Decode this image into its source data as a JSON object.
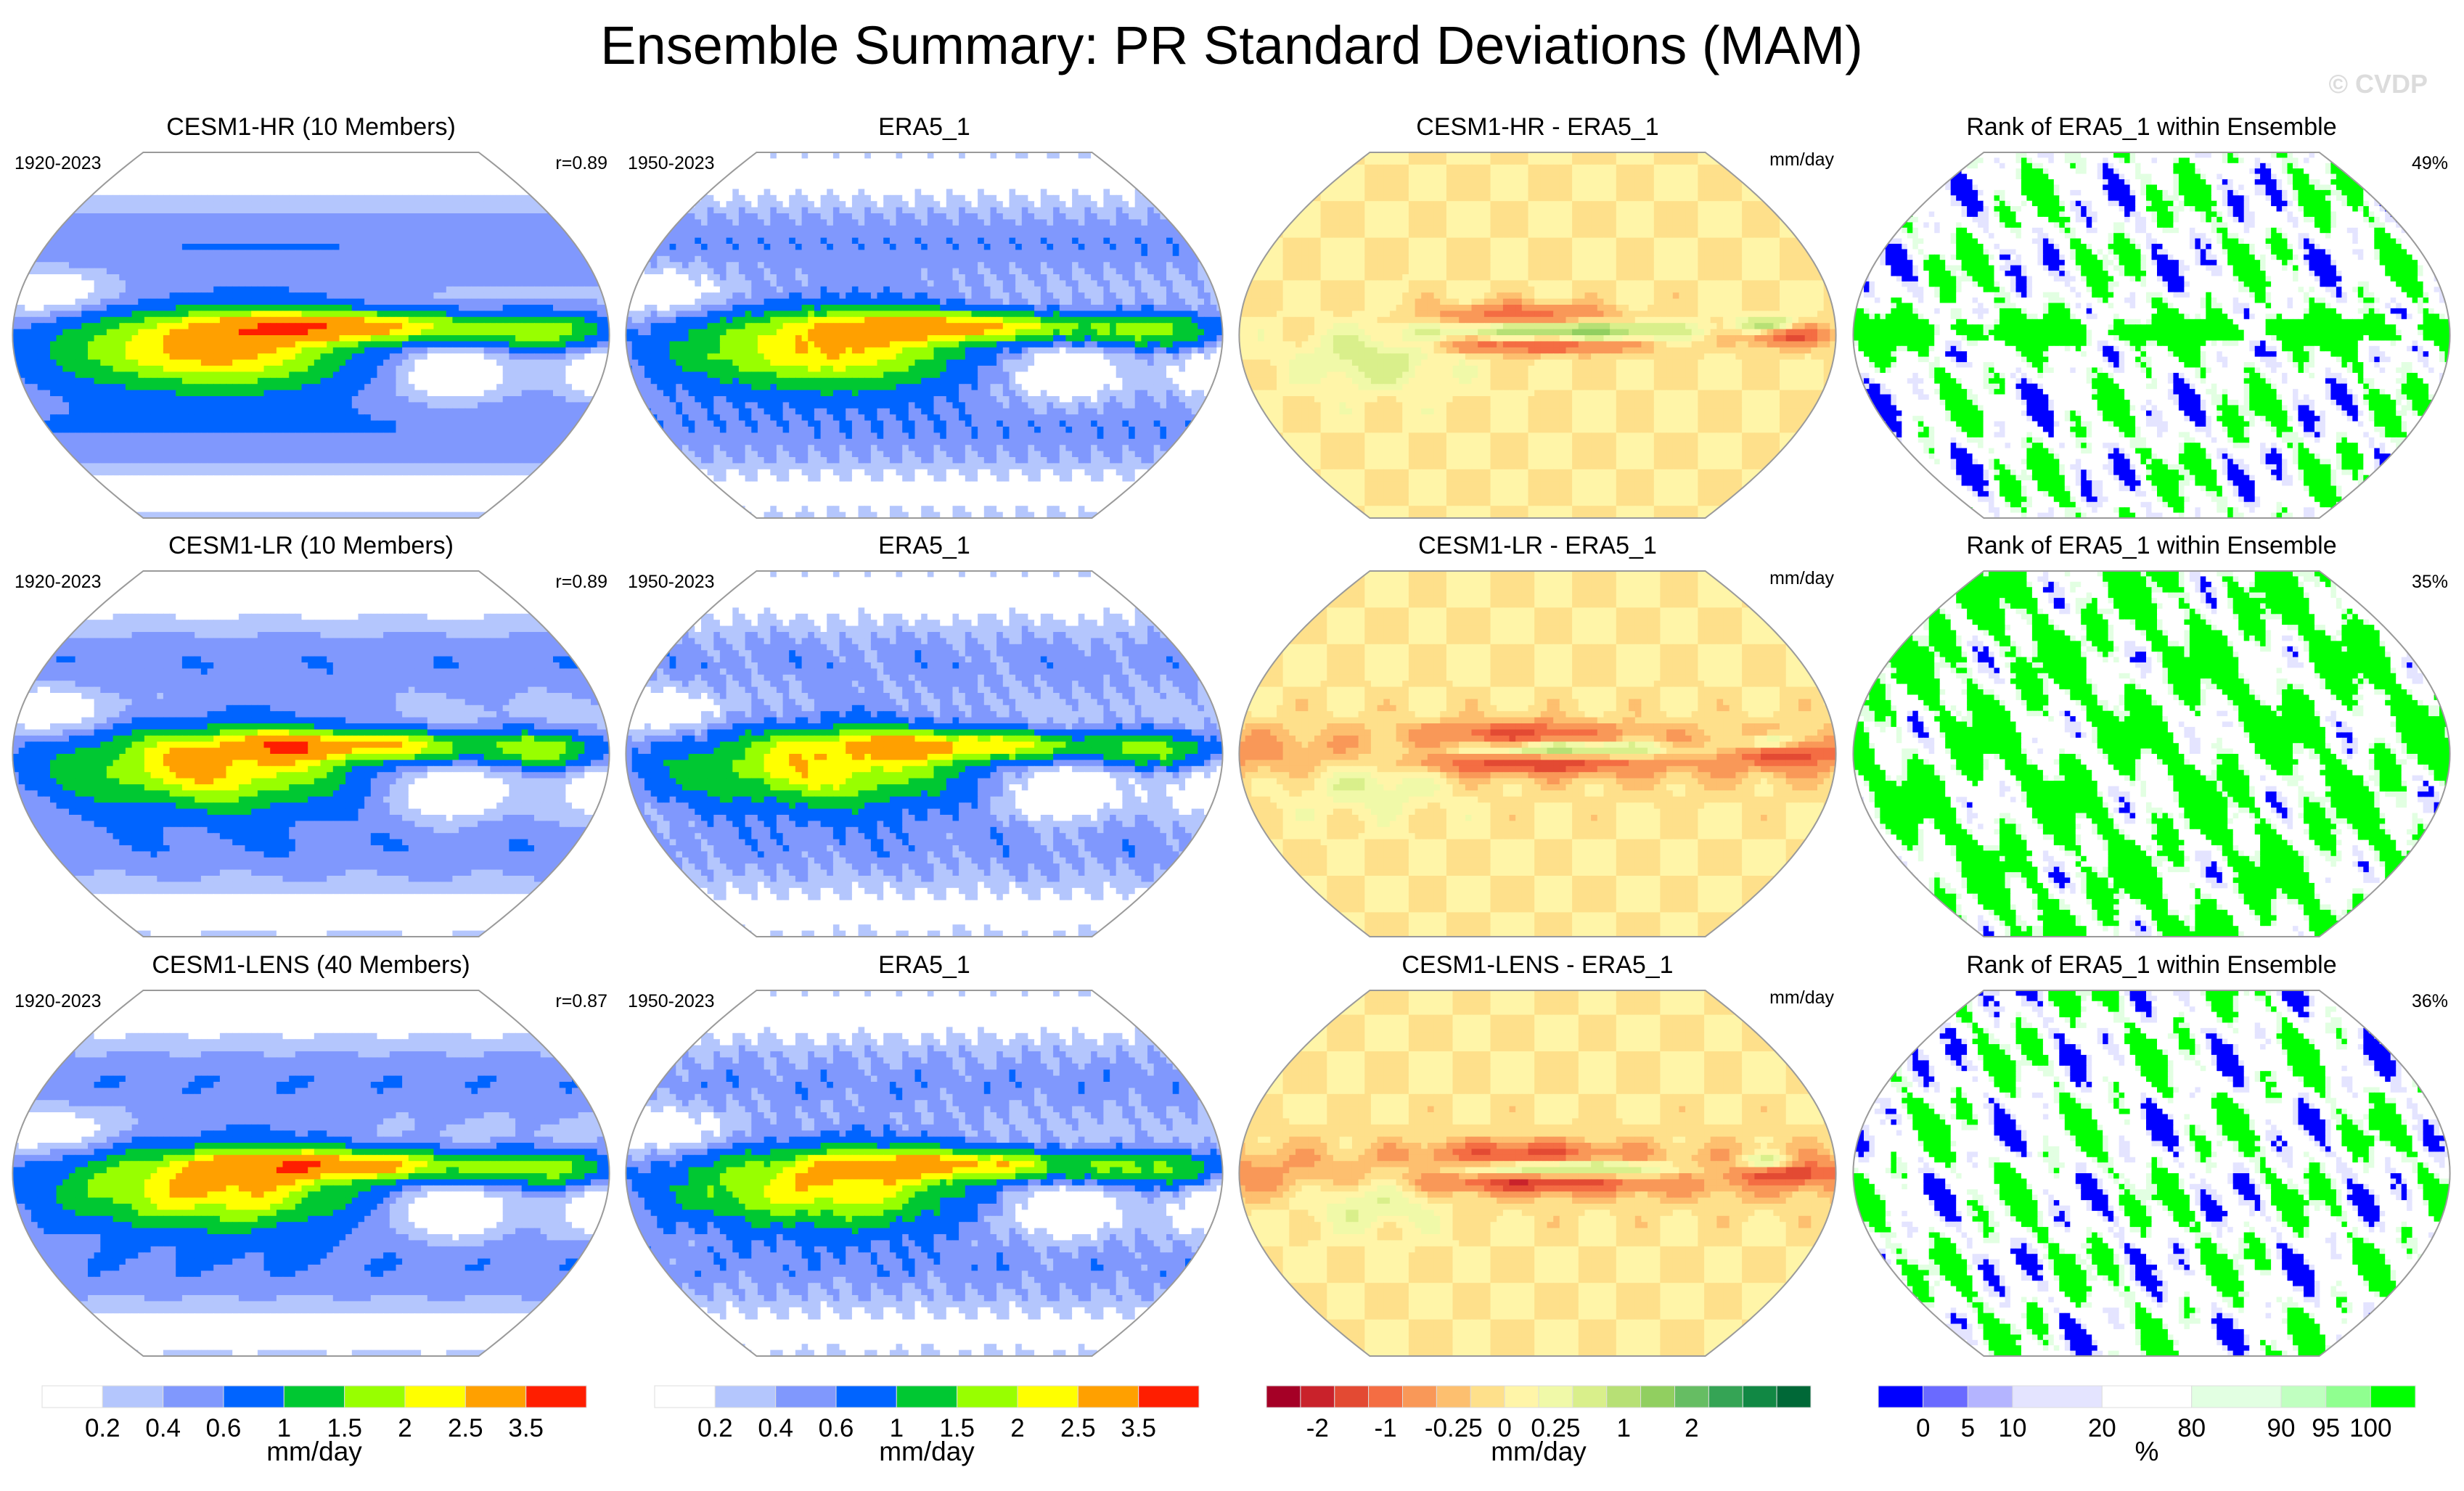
{
  "figure": {
    "title": "Ensemble Summary: PR Standard Deviations (MAM)",
    "watermark": "© CVDP"
  },
  "chart_data": {
    "type": "heatmap",
    "title": "Ensemble Summary: PR Standard Deviations (MAM)",
    "season": "MAM",
    "variable": "PR",
    "statistic": "Standard Deviation",
    "projection": "global map (Robinson-like)",
    "grid": false,
    "rows": [
      {
        "model": "CESM1-HR (10 Members)",
        "model_color": "#0e6880",
        "model_period": "1920-2023",
        "pattern_correlation": "r=0.89",
        "obs_title": "ERA5_1",
        "obs_period": "1950-2023",
        "diff_title": "CESM1-HR - ERA5_1",
        "diff_units": "mm/day",
        "rank_title": "Rank of ERA5_1 within Ensemble",
        "rank_percent": "49%",
        "rank_percent_value": 49
      },
      {
        "model": "CESM1-LR (10 Members)",
        "model_color": "#5d8a5f",
        "model_period": "1920-2023",
        "pattern_correlation": "r=0.89",
        "obs_title": "ERA5_1",
        "obs_period": "1950-2023",
        "diff_title": "CESM1-LR - ERA5_1",
        "diff_units": "mm/day",
        "rank_title": "Rank of ERA5_1 within Ensemble",
        "rank_percent": "35%",
        "rank_percent_value": 35
      },
      {
        "model": "CESM1-LENS (40 Members)",
        "model_color": "#cfc07a",
        "model_period": "1920-2023",
        "pattern_correlation": "r=0.87",
        "obs_title": "ERA5_1",
        "obs_period": "1950-2023",
        "diff_title": "CESM1-LENS - ERA5_1",
        "diff_units": "mm/day",
        "rank_title": "Rank of ERA5_1 within Ensemble",
        "rank_percent": "36%",
        "rank_percent_value": 36
      }
    ],
    "colorbars": [
      {
        "name": "std",
        "units": "mm/day",
        "ticks": [
          "0.2",
          "0.4",
          "0.6",
          "1",
          "1.5",
          "2",
          "2.5",
          "3.5"
        ],
        "levels": [
          0.2,
          0.4,
          0.6,
          1,
          1.5,
          2,
          2.5,
          3.5
        ],
        "colors": [
          "#ffffff",
          "#b4c6fd",
          "#8098fd",
          "#0064ff",
          "#00c832",
          "#98ff00",
          "#ffff00",
          "#ffa000",
          "#ff1e00"
        ]
      },
      {
        "name": "std-obs",
        "units": "mm/day",
        "ticks": [
          "0.2",
          "0.4",
          "0.6",
          "1",
          "1.5",
          "2",
          "2.5",
          "3.5"
        ],
        "levels": [
          0.2,
          0.4,
          0.6,
          1,
          1.5,
          2,
          2.5,
          3.5
        ],
        "colors": [
          "#ffffff",
          "#b4c6fd",
          "#8098fd",
          "#0064ff",
          "#00c832",
          "#98ff00",
          "#ffff00",
          "#ffa000",
          "#ff1e00"
        ]
      },
      {
        "name": "diff",
        "units": "mm/day",
        "ticks": [
          "-2",
          "-1",
          "-0.25",
          "0",
          "0.25",
          "1",
          "2"
        ],
        "levels": [
          -3,
          -2,
          -1.5,
          -1,
          -0.5,
          -0.25,
          0,
          0.25,
          0.5,
          1,
          1.5,
          2,
          3
        ],
        "tick_positions": [
          1,
          3,
          5,
          7,
          9,
          11,
          13
        ],
        "colors": [
          "#a50026",
          "#c9222b",
          "#e34a33",
          "#f46d43",
          "#f99858",
          "#fdbf6f",
          "#fee08b",
          "#fff5a8",
          "#f0f9a8",
          "#d9ef8b",
          "#b7e075",
          "#91cf60",
          "#66bd63",
          "#35a455",
          "#118844",
          "#006837"
        ]
      },
      {
        "name": "rank",
        "units": "%",
        "ticks": [
          "0",
          "5",
          "10",
          "20",
          "80",
          "90",
          "95",
          "100"
        ],
        "levels": [
          0,
          5,
          10,
          20,
          80,
          90,
          95,
          100
        ],
        "colors": [
          "#0000ff",
          "#6a6aff",
          "#b4b4ff",
          "#e4e4ff",
          "#ffffff",
          "#e2ffe2",
          "#c0ffc0",
          "#90ff90",
          "#00ff00"
        ],
        "widths": [
          1,
          1,
          1,
          2,
          2,
          2,
          1,
          1,
          1
        ]
      }
    ]
  }
}
